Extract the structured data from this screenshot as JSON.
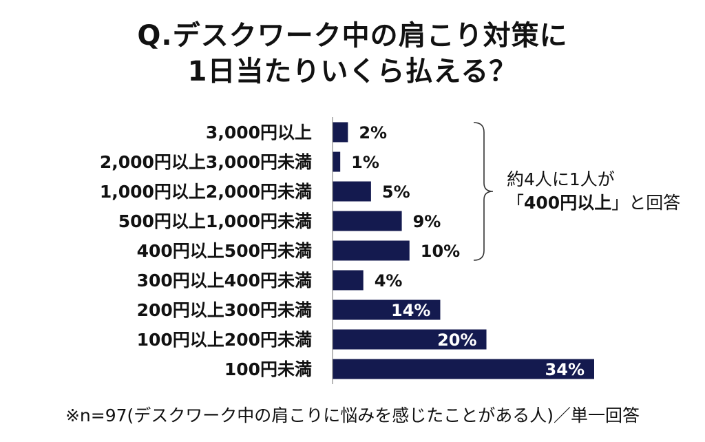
{
  "title": {
    "line1": "Q.デスクワーク中の肩こり対策に",
    "line2": "1日当たりいくら払える？"
  },
  "chart_data": {
    "type": "bar",
    "orientation": "horizontal",
    "categories": [
      "3,000円以上",
      "2,000円以上3,000円未満",
      "1,000円以上2,000円未満",
      "500円以上1,000円未満",
      "400円以上500円未満",
      "300円以上400円未満",
      "200円以上300円未満",
      "100円以上200円未満",
      "100円未満"
    ],
    "values": [
      2,
      1,
      5,
      9,
      10,
      4,
      14,
      20,
      34
    ],
    "value_labels": [
      "2%",
      "1%",
      "5%",
      "9%",
      "10%",
      "4%",
      "14%",
      "20%",
      "34%"
    ],
    "bar_color": "#141a4f",
    "xlim": [
      0,
      40
    ]
  },
  "callout": {
    "line1": "約4人に1人が",
    "quote_open": "「",
    "highlight": "400円以上",
    "quote_close": "」",
    "suffix": "と回答"
  },
  "note": "※n=97(デスクワーク中の肩こりに悩みを感じたことがある人)／単一回答"
}
